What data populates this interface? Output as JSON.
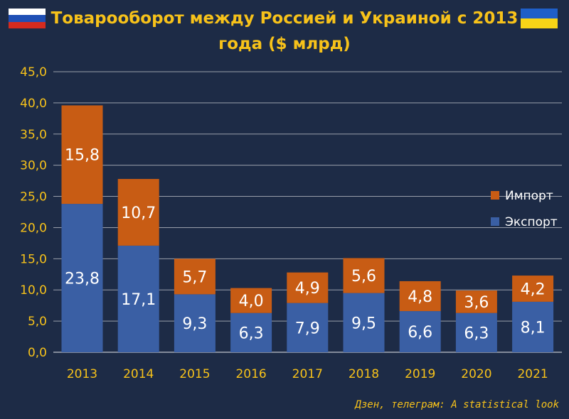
{
  "header": {
    "title_line1": "Товарооборот между Россией и Украиной с 2013",
    "title_line2": "года ($ млрд)"
  },
  "flags": {
    "left": "russia-flag",
    "right": "ukraine-flag"
  },
  "credit": "Дзен, телеграм: A statistical look",
  "colors": {
    "background": "#1d2b46",
    "export": "#3a5fa4",
    "import": "#c85c14",
    "text_accent": "#f7c21a",
    "grid": "#ffffff"
  },
  "chart_data": {
    "type": "bar",
    "stacked": true,
    "categories": [
      "2013",
      "2014",
      "2015",
      "2016",
      "2017",
      "2018",
      "2019",
      "2020",
      "2021"
    ],
    "series": [
      {
        "name": "Экспорт",
        "values": [
          23.8,
          17.1,
          9.3,
          6.3,
          7.9,
          9.5,
          6.6,
          6.3,
          8.1
        ]
      },
      {
        "name": "Импорт",
        "values": [
          15.8,
          10.7,
          5.7,
          4.0,
          4.9,
          5.6,
          4.8,
          3.6,
          4.2
        ]
      }
    ],
    "value_labels": [
      [
        "23,8",
        "17,1",
        "9,3",
        "6,3",
        "7,9",
        "9,5",
        "6,6",
        "6,3",
        "8,1"
      ],
      [
        "15,8",
        "10,7",
        "5,7",
        "4,0",
        "4,9",
        "5,6",
        "4,8",
        "3,6",
        "4,2"
      ]
    ],
    "y_ticks": [
      "0,0",
      "5,0",
      "10,0",
      "15,0",
      "20,0",
      "25,0",
      "30,0",
      "35,0",
      "40,0",
      "45,0"
    ],
    "ylim": [
      0,
      45
    ],
    "grid": true,
    "legend": {
      "position": "right",
      "order": [
        "Импорт",
        "Экспорт"
      ]
    }
  }
}
